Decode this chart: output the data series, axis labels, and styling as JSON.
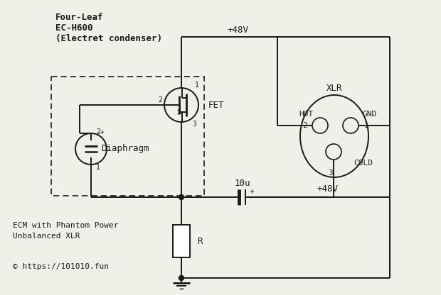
{
  "bg_color": "#f0efe8",
  "line_color": "#1a1a1a",
  "title_text": "Four-Leaf\nEC-H600\n(Electret condenser)",
  "label_ecm_line1": "ECM with Phantom Power",
  "label_ecm_line2": "Unbalanced XLR",
  "label_copyright": "© https://101010.fun",
  "label_48v_top": "+48V",
  "label_48v_cap": "+48V",
  "label_fet": "FET",
  "label_diaphragm": "Diaphragm",
  "label_10u": "10u",
  "label_r": "R",
  "label_xlr": "XLR",
  "label_hot": "HOT",
  "label_gnd": "GND",
  "label_cold": "COLD",
  "fet_pin1": "1",
  "fet_pin2": "2",
  "fet_pin3": "3",
  "dia_pin_top": "2+",
  "dia_pin_bot": "1",
  "xlr_pin1_label": "1",
  "xlr_pin2_label": "2",
  "xlr_pin3_label": "3",
  "xlr_ext_pin1": "1",
  "xlr_ext_pin2": "2",
  "xlr_ext_pin3": "3"
}
